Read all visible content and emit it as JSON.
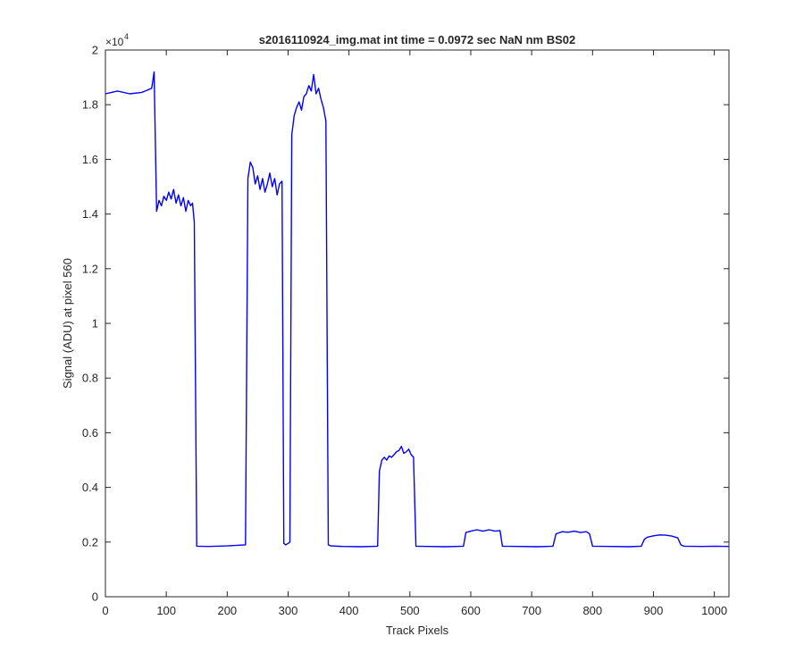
{
  "chart_data": {
    "type": "line",
    "title": "s2016110924_img.mat int time = 0.0972 sec  NaN nm BS02",
    "xlabel": "Track Pixels",
    "ylabel": "Signal (ADU) at pixel 560",
    "y_exponent_label": "×10",
    "y_exponent_power": "4",
    "xlim": [
      0,
      1024
    ],
    "ylim": [
      0,
      20000
    ],
    "x_ticks": [
      0,
      100,
      200,
      300,
      400,
      500,
      600,
      700,
      800,
      900,
      1000
    ],
    "x_tick_labels": [
      "0",
      "100",
      "200",
      "300",
      "400",
      "500",
      "600",
      "700",
      "800",
      "900",
      "1000"
    ],
    "y_ticks": [
      0,
      2000,
      4000,
      6000,
      8000,
      10000,
      12000,
      14000,
      16000,
      18000,
      20000
    ],
    "y_tick_labels": [
      "0",
      "0.2",
      "0.4",
      "0.6",
      "0.8",
      "1",
      "1.2",
      "1.4",
      "1.6",
      "1.8",
      "2"
    ],
    "grid": false,
    "line_color": "#0000ff",
    "series": [
      {
        "x": [
          0,
          20,
          40,
          60,
          76,
          80,
          84,
          88,
          92,
          96,
          100,
          104,
          108,
          112,
          116,
          120,
          124,
          128,
          132,
          136,
          140,
          143,
          146,
          150,
          170,
          200,
          230,
          234,
          238,
          242,
          246,
          250,
          254,
          258,
          262,
          266,
          270,
          274,
          278,
          282,
          286,
          290,
          293,
          296,
          300,
          303,
          306,
          310,
          314,
          318,
          322,
          326,
          330,
          334,
          338,
          342,
          346,
          350,
          354,
          358,
          362,
          366,
          370,
          390,
          420,
          447,
          450,
          454,
          458,
          462,
          466,
          470,
          474,
          478,
          482,
          486,
          490,
          494,
          498,
          502,
          506,
          510,
          530,
          560,
          588,
          592,
          600,
          610,
          620,
          630,
          640,
          648,
          652,
          680,
          710,
          735,
          740,
          750,
          760,
          770,
          780,
          790,
          795,
          800,
          830,
          860,
          880,
          885,
          890,
          900,
          910,
          920,
          930,
          940,
          945,
          950,
          980,
          1000,
          1024
        ],
        "y": [
          18400,
          18500,
          18400,
          18450,
          18600,
          19200,
          14100,
          14500,
          14300,
          14650,
          14500,
          14800,
          14550,
          14900,
          14400,
          14700,
          14300,
          14600,
          14100,
          14500,
          14300,
          14400,
          13700,
          1850,
          1840,
          1860,
          1900,
          15300,
          15900,
          15700,
          15100,
          15400,
          14900,
          15300,
          14800,
          15100,
          15500,
          15000,
          15300,
          14700,
          15100,
          15200,
          1950,
          1900,
          1950,
          2000,
          16900,
          17600,
          17900,
          18100,
          17800,
          18300,
          18400,
          18700,
          18500,
          19100,
          18400,
          18600,
          18200,
          17900,
          17400,
          1900,
          1860,
          1840,
          1830,
          1850,
          4600,
          5000,
          5100,
          5000,
          5150,
          5100,
          5200,
          5300,
          5350,
          5500,
          5250,
          5300,
          5400,
          5200,
          5100,
          1850,
          1840,
          1830,
          1850,
          2350,
          2400,
          2450,
          2400,
          2450,
          2400,
          2420,
          1850,
          1840,
          1830,
          1850,
          2300,
          2380,
          2360,
          2400,
          2350,
          2380,
          2300,
          1850,
          1840,
          1830,
          1850,
          2100,
          2180,
          2230,
          2260,
          2250,
          2220,
          2150,
          1900,
          1850,
          1840,
          1850,
          1840
        ]
      }
    ]
  }
}
